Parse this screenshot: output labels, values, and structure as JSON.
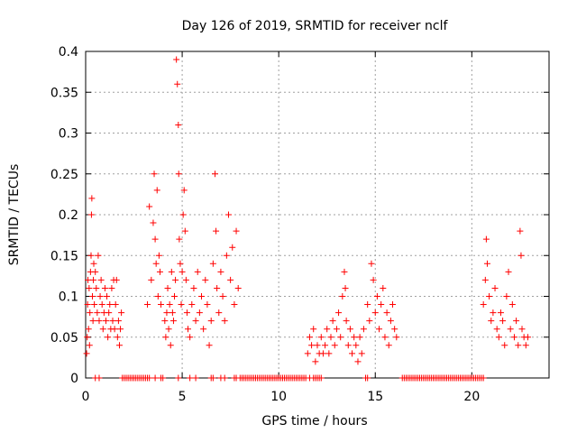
{
  "chart_data": {
    "type": "scatter",
    "title": "Day 126 of 2019, SRMTID for receiver nclf",
    "xlabel": "GPS time / hours",
    "ylabel": "SRMTID / TECUs",
    "xlim": [
      0,
      24
    ],
    "ylim": [
      0,
      0.4
    ],
    "xticks": [
      0,
      5,
      10,
      15,
      20
    ],
    "xtick_labels": [
      "0",
      "5",
      "10",
      "15",
      "20"
    ],
    "yticks": [
      0,
      0.05,
      0.1,
      0.15,
      0.2,
      0.25,
      0.3,
      0.35,
      0.4
    ],
    "ytick_labels": [
      "0",
      "0.05",
      "0.1",
      "0.15",
      "0.2",
      "0.25",
      "0.3",
      "0.35",
      "0.4"
    ],
    "grid": true,
    "marker": "+",
    "color": "#ff0000",
    "series": [
      {
        "name": "SRMTID",
        "points": [
          [
            0.05,
            0.03
          ],
          [
            0.08,
            0.05
          ],
          [
            0.1,
            0.09
          ],
          [
            0.12,
            0.12
          ],
          [
            0.15,
            0.06
          ],
          [
            0.18,
            0.11
          ],
          [
            0.2,
            0.04
          ],
          [
            0.22,
            0.08
          ],
          [
            0.25,
            0.13
          ],
          [
            0.28,
            0.15
          ],
          [
            0.3,
            0.2
          ],
          [
            0.32,
            0.22
          ],
          [
            0.35,
            0.1
          ],
          [
            0.38,
            0.07
          ],
          [
            0.4,
            0.12
          ],
          [
            0.42,
            0.14
          ],
          [
            0.45,
            0.09
          ],
          [
            0.5,
            0.13
          ],
          [
            0.55,
            0.11
          ],
          [
            0.6,
            0.08
          ],
          [
            0.65,
            0.15
          ],
          [
            0.7,
            0.07
          ],
          [
            0.75,
            0.1
          ],
          [
            0.8,
            0.12
          ],
          [
            0.85,
            0.09
          ],
          [
            0.9,
            0.06
          ],
          [
            0.95,
            0.08
          ],
          [
            1.0,
            0.11
          ],
          [
            1.05,
            0.07
          ],
          [
            1.1,
            0.1
          ],
          [
            1.15,
            0.05
          ],
          [
            1.2,
            0.08
          ],
          [
            1.25,
            0.09
          ],
          [
            1.3,
            0.06
          ],
          [
            1.35,
            0.11
          ],
          [
            1.4,
            0.07
          ],
          [
            1.45,
            0.12
          ],
          [
            1.5,
            0.06
          ],
          [
            1.55,
            0.09
          ],
          [
            1.6,
            0.12
          ],
          [
            1.65,
            0.05
          ],
          [
            1.7,
            0.07
          ],
          [
            1.75,
            0.04
          ],
          [
            1.8,
            0.06
          ],
          [
            1.85,
            0.08
          ],
          [
            3.2,
            0.09
          ],
          [
            3.3,
            0.21
          ],
          [
            3.4,
            0.12
          ],
          [
            3.5,
            0.19
          ],
          [
            3.55,
            0.25
          ],
          [
            3.6,
            0.17
          ],
          [
            3.65,
            0.14
          ],
          [
            3.7,
            0.23
          ],
          [
            3.75,
            0.1
          ],
          [
            3.8,
            0.15
          ],
          [
            3.85,
            0.13
          ],
          [
            3.9,
            0.09
          ],
          [
            4.1,
            0.07
          ],
          [
            4.15,
            0.05
          ],
          [
            4.2,
            0.08
          ],
          [
            4.25,
            0.11
          ],
          [
            4.3,
            0.06
          ],
          [
            4.35,
            0.09
          ],
          [
            4.4,
            0.04
          ],
          [
            4.45,
            0.13
          ],
          [
            4.5,
            0.08
          ],
          [
            4.55,
            0.07
          ],
          [
            4.6,
            0.1
          ],
          [
            4.65,
            0.12
          ],
          [
            4.7,
            0.39
          ],
          [
            4.75,
            0.36
          ],
          [
            4.8,
            0.31
          ],
          [
            4.82,
            0.25
          ],
          [
            4.85,
            0.17
          ],
          [
            4.9,
            0.14
          ],
          [
            4.95,
            0.09
          ],
          [
            5.0,
            0.13
          ],
          [
            5.05,
            0.2
          ],
          [
            5.1,
            0.23
          ],
          [
            5.15,
            0.18
          ],
          [
            5.2,
            0.12
          ],
          [
            5.25,
            0.08
          ],
          [
            5.3,
            0.06
          ],
          [
            5.4,
            0.05
          ],
          [
            5.5,
            0.09
          ],
          [
            5.6,
            0.11
          ],
          [
            5.7,
            0.07
          ],
          [
            5.8,
            0.13
          ],
          [
            5.9,
            0.08
          ],
          [
            6.0,
            0.1
          ],
          [
            6.1,
            0.06
          ],
          [
            6.2,
            0.12
          ],
          [
            6.3,
            0.09
          ],
          [
            6.4,
            0.04
          ],
          [
            6.5,
            0.07
          ],
          [
            6.6,
            0.14
          ],
          [
            6.7,
            0.25
          ],
          [
            6.75,
            0.18
          ],
          [
            6.8,
            0.11
          ],
          [
            6.9,
            0.08
          ],
          [
            7.0,
            0.13
          ],
          [
            7.1,
            0.1
          ],
          [
            7.2,
            0.07
          ],
          [
            7.3,
            0.15
          ],
          [
            7.4,
            0.2
          ],
          [
            7.5,
            0.12
          ],
          [
            7.6,
            0.16
          ],
          [
            7.7,
            0.09
          ],
          [
            7.8,
            0.18
          ],
          [
            7.9,
            0.11
          ],
          [
            11.5,
            0.03
          ],
          [
            11.6,
            0.05
          ],
          [
            11.7,
            0.04
          ],
          [
            11.8,
            0.06
          ],
          [
            11.9,
            0.02
          ],
          [
            12.0,
            0.04
          ],
          [
            12.1,
            0.03
          ],
          [
            12.2,
            0.05
          ],
          [
            12.3,
            0.03
          ],
          [
            12.4,
            0.04
          ],
          [
            12.5,
            0.06
          ],
          [
            12.6,
            0.03
          ],
          [
            12.7,
            0.05
          ],
          [
            12.8,
            0.07
          ],
          [
            12.9,
            0.04
          ],
          [
            13.0,
            0.06
          ],
          [
            13.1,
            0.08
          ],
          [
            13.2,
            0.05
          ],
          [
            13.3,
            0.1
          ],
          [
            13.4,
            0.13
          ],
          [
            13.45,
            0.11
          ],
          [
            13.5,
            0.07
          ],
          [
            13.6,
            0.04
          ],
          [
            13.7,
            0.06
          ],
          [
            13.8,
            0.03
          ],
          [
            13.9,
            0.05
          ],
          [
            14.0,
            0.04
          ],
          [
            14.1,
            0.02
          ],
          [
            14.2,
            0.05
          ],
          [
            14.3,
            0.03
          ],
          [
            14.4,
            0.06
          ],
          [
            14.6,
            0.09
          ],
          [
            14.7,
            0.07
          ],
          [
            14.8,
            0.14
          ],
          [
            14.9,
            0.12
          ],
          [
            15.0,
            0.08
          ],
          [
            15.1,
            0.1
          ],
          [
            15.2,
            0.06
          ],
          [
            15.3,
            0.09
          ],
          [
            15.4,
            0.11
          ],
          [
            15.5,
            0.05
          ],
          [
            15.6,
            0.08
          ],
          [
            15.7,
            0.04
          ],
          [
            15.8,
            0.07
          ],
          [
            15.9,
            0.09
          ],
          [
            16.0,
            0.06
          ],
          [
            16.1,
            0.05
          ],
          [
            20.6,
            0.09
          ],
          [
            20.7,
            0.12
          ],
          [
            20.75,
            0.17
          ],
          [
            20.8,
            0.14
          ],
          [
            20.9,
            0.1
          ],
          [
            21.0,
            0.07
          ],
          [
            21.1,
            0.08
          ],
          [
            21.2,
            0.11
          ],
          [
            21.3,
            0.06
          ],
          [
            21.4,
            0.05
          ],
          [
            21.5,
            0.08
          ],
          [
            21.6,
            0.07
          ],
          [
            21.7,
            0.04
          ],
          [
            21.8,
            0.1
          ],
          [
            21.9,
            0.13
          ],
          [
            22.0,
            0.06
          ],
          [
            22.1,
            0.09
          ],
          [
            22.2,
            0.05
          ],
          [
            22.3,
            0.07
          ],
          [
            22.4,
            0.04
          ],
          [
            22.5,
            0.18
          ],
          [
            22.55,
            0.15
          ],
          [
            22.6,
            0.06
          ],
          [
            22.7,
            0.05
          ],
          [
            22.8,
            0.04
          ],
          [
            22.9,
            0.05
          ]
        ],
        "zero_points_x": [
          0.5,
          0.7,
          1.9,
          2.0,
          2.1,
          2.2,
          2.3,
          2.4,
          2.5,
          2.6,
          2.7,
          2.8,
          2.9,
          3.0,
          3.1,
          3.2,
          3.3,
          3.6,
          3.9,
          4.0,
          4.8,
          5.4,
          5.7,
          6.5,
          6.6,
          7.0,
          7.2,
          7.7,
          7.8,
          8.0,
          8.1,
          8.2,
          8.3,
          8.4,
          8.5,
          8.6,
          8.7,
          8.8,
          8.9,
          9.0,
          9.1,
          9.2,
          9.3,
          9.4,
          9.5,
          9.6,
          9.7,
          9.8,
          9.9,
          10.0,
          10.1,
          10.2,
          10.3,
          10.4,
          10.5,
          10.6,
          10.7,
          10.8,
          10.9,
          11.0,
          11.1,
          11.2,
          11.3,
          11.4,
          11.6,
          11.8,
          11.9,
          12.0,
          12.1,
          12.2,
          14.5,
          14.6,
          16.4,
          16.5,
          16.6,
          16.7,
          16.8,
          16.9,
          17.0,
          17.1,
          17.2,
          17.3,
          17.4,
          17.5,
          17.6,
          17.7,
          17.8,
          17.9,
          18.0,
          18.1,
          18.2,
          18.3,
          18.4,
          18.5,
          18.6,
          18.7,
          18.8,
          18.9,
          19.0,
          19.1,
          19.2,
          19.3,
          19.4,
          19.5,
          19.6,
          19.7,
          19.8,
          19.9,
          20.0,
          20.1,
          20.2,
          20.3,
          20.4,
          20.5,
          20.6
        ]
      }
    ]
  }
}
